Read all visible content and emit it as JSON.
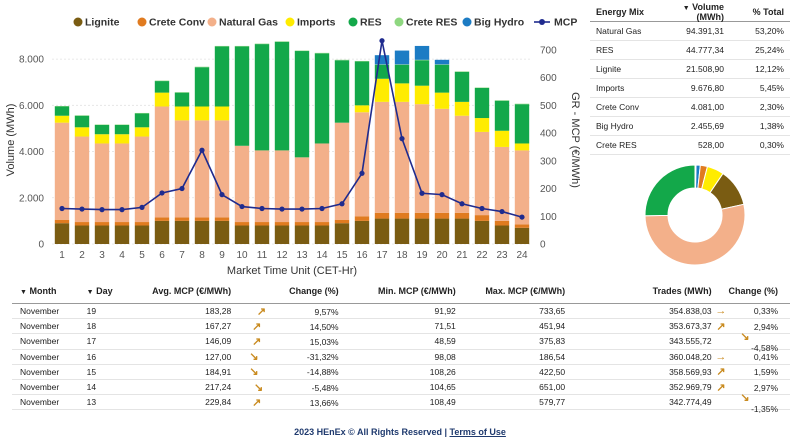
{
  "chart_data": {
    "type": "bar",
    "stacked": true,
    "categories": [
      "1",
      "2",
      "3",
      "4",
      "5",
      "6",
      "7",
      "8",
      "9",
      "10",
      "11",
      "12",
      "13",
      "14",
      "15",
      "16",
      "17",
      "18",
      "19",
      "20",
      "21",
      "22",
      "23",
      "24"
    ],
    "xlabel": "Market Time Unit (CET-Hr)",
    "ylabel": "Volume (MWh)",
    "y2label": "GR - MCP (€/MWh)",
    "ylim": [
      0,
      9000
    ],
    "y2lim": [
      0,
      750
    ],
    "yticks": [
      "0",
      "2.000",
      "4.000",
      "6.000",
      "8.000"
    ],
    "y2ticks": [
      "0",
      "100",
      "200",
      "300",
      "400",
      "500",
      "600",
      "700"
    ],
    "legend_position": "top",
    "series": [
      {
        "name": "Lignite",
        "color": "#7a5c12",
        "values": [
          900,
          800,
          800,
          800,
          800,
          1000,
          1000,
          1000,
          1000,
          800,
          800,
          800,
          800,
          800,
          900,
          1000,
          1100,
          1100,
          1100,
          1100,
          1100,
          1000,
          800,
          700
        ]
      },
      {
        "name": "Crete Conv",
        "color": "#e07b20",
        "values": [
          150,
          150,
          150,
          150,
          150,
          150,
          150,
          150,
          150,
          150,
          150,
          150,
          150,
          150,
          150,
          200,
          250,
          250,
          250,
          250,
          250,
          250,
          200,
          150
        ]
      },
      {
        "name": "Natural Gas",
        "color": "#f3b08a",
        "values": [
          4200,
          3700,
          3400,
          3400,
          3700,
          4800,
          4200,
          4200,
          4200,
          3300,
          3100,
          3100,
          2800,
          3400,
          4200,
          4500,
          4800,
          4800,
          4700,
          4500,
          4200,
          3600,
          3200,
          3200
        ]
      },
      {
        "name": "Imports",
        "color": "#ffec00",
        "values": [
          300,
          400,
          400,
          400,
          400,
          600,
          600,
          600,
          600,
          0,
          0,
          0,
          0,
          0,
          0,
          300,
          1000,
          800,
          800,
          700,
          600,
          600,
          700,
          300
        ]
      },
      {
        "name": "RES",
        "color": "#13a84a",
        "values": [
          400,
          500,
          400,
          400,
          600,
          500,
          600,
          1700,
          2600,
          4300,
          4600,
          4700,
          4600,
          3900,
          2700,
          1900,
          600,
          800,
          1100,
          1200,
          1300,
          1300,
          1300,
          1700
        ]
      },
      {
        "name": "Crete RES",
        "color": "#8ed780",
        "values": [
          20,
          20,
          20,
          20,
          20,
          20,
          20,
          20,
          20,
          20,
          20,
          20,
          20,
          20,
          20,
          20,
          20,
          20,
          20,
          20,
          20,
          20,
          20,
          20
        ]
      },
      {
        "name": "Big Hydro",
        "color": "#1c7cc4",
        "values": [
          0,
          0,
          0,
          0,
          0,
          0,
          0,
          0,
          0,
          0,
          0,
          0,
          0,
          0,
          0,
          0,
          400,
          600,
          600,
          200,
          0,
          0,
          0,
          0
        ]
      }
    ],
    "line_series": {
      "name": "MCP",
      "color": "#1f2b8e",
      "axis": "right",
      "values": [
        128,
        126,
        124,
        124,
        132,
        184,
        200,
        338,
        178,
        135,
        128,
        126,
        126,
        128,
        145,
        255,
        733,
        380,
        183,
        178,
        145,
        128,
        117,
        97
      ]
    }
  },
  "legend": {
    "lignite": "Lignite",
    "crete_conv": "Crete Conv",
    "natural_gas": "Natural Gas",
    "imports": "Imports",
    "res": "RES",
    "crete_res": "Crete RES",
    "big_hydro": "Big Hydro",
    "mcp": "MCP"
  },
  "energy_mix": {
    "headers": {
      "name": "Energy Mix",
      "volume": "Volume (MWh)",
      "pct": "% Total"
    },
    "rows": [
      {
        "name": "Natural Gas",
        "volume": "94.391,31",
        "pct": "53,20%",
        "share": 53.2,
        "color": "#f3b08a"
      },
      {
        "name": "RES",
        "volume": "44.777,34",
        "pct": "25,24%",
        "share": 25.24,
        "color": "#13a84a"
      },
      {
        "name": "Lignite",
        "volume": "21.508,90",
        "pct": "12,12%",
        "share": 12.12,
        "color": "#7a5c12"
      },
      {
        "name": "Imports",
        "volume": "9.676,80",
        "pct": "5,45%",
        "share": 5.45,
        "color": "#ffec00"
      },
      {
        "name": "Crete Conv",
        "volume": "4.081,00",
        "pct": "2,30%",
        "share": 2.3,
        "color": "#e07b20"
      },
      {
        "name": "Big Hydro",
        "volume": "2.455,69",
        "pct": "1,38%",
        "share": 1.38,
        "color": "#1c7cc4"
      },
      {
        "name": "Crete RES",
        "volume": "528,00",
        "pct": "0,30%",
        "share": 0.3,
        "color": "#8ed780"
      }
    ]
  },
  "daily": {
    "headers": {
      "month": "Month",
      "day": "Day",
      "avg": "Avg. MCP (€/MWh)",
      "change": "Change (%)",
      "min": "Min. MCP (€/MWh)",
      "max": "Max. MCP (€/MWh)",
      "trades": "Trades (MWh)",
      "change2": "Change (%)"
    },
    "rows": [
      {
        "month": "November",
        "day": "19",
        "avg": "183,28",
        "change_arrow": "up",
        "change": "9,57%",
        "min": "91,92",
        "max": "733,65",
        "trades": "354.838,03",
        "change2_arrow": "flat",
        "change2": "0,33%"
      },
      {
        "month": "November",
        "day": "18",
        "avg": "167,27",
        "change_arrow": "up",
        "change": "14,50%",
        "min": "71,51",
        "max": "451,94",
        "trades": "353.673,37",
        "change2_arrow": "up",
        "change2": "2,94%"
      },
      {
        "month": "November",
        "day": "17",
        "avg": "146,09",
        "change_arrow": "up",
        "change": "15,03%",
        "min": "48,59",
        "max": "375,83",
        "trades": "343.555,72",
        "change2_arrow": "down",
        "change2": "-4,58%"
      },
      {
        "month": "November",
        "day": "16",
        "avg": "127,00",
        "change_arrow": "down",
        "change": "-31,32%",
        "min": "98,08",
        "max": "186,54",
        "trades": "360.048,20",
        "change2_arrow": "flat",
        "change2": "0,41%"
      },
      {
        "month": "November",
        "day": "15",
        "avg": "184,91",
        "change_arrow": "down",
        "change": "-14,88%",
        "min": "108,26",
        "max": "422,50",
        "trades": "358.569,93",
        "change2_arrow": "up",
        "change2": "1,59%"
      },
      {
        "month": "November",
        "day": "14",
        "avg": "217,24",
        "change_arrow": "down",
        "change": "-5,48%",
        "min": "104,65",
        "max": "651,00",
        "trades": "352.969,79",
        "change2_arrow": "up",
        "change2": "2,97%"
      },
      {
        "month": "November",
        "day": "13",
        "avg": "229,84",
        "change_arrow": "up",
        "change": "13,66%",
        "min": "108,49",
        "max": "579,77",
        "trades": "342.774,49",
        "change2_arrow": "down",
        "change2": "-1,35%"
      }
    ]
  },
  "footer": {
    "text": "2023 HEnEx © All Rights Reserved |",
    "link": "Terms of Use"
  }
}
